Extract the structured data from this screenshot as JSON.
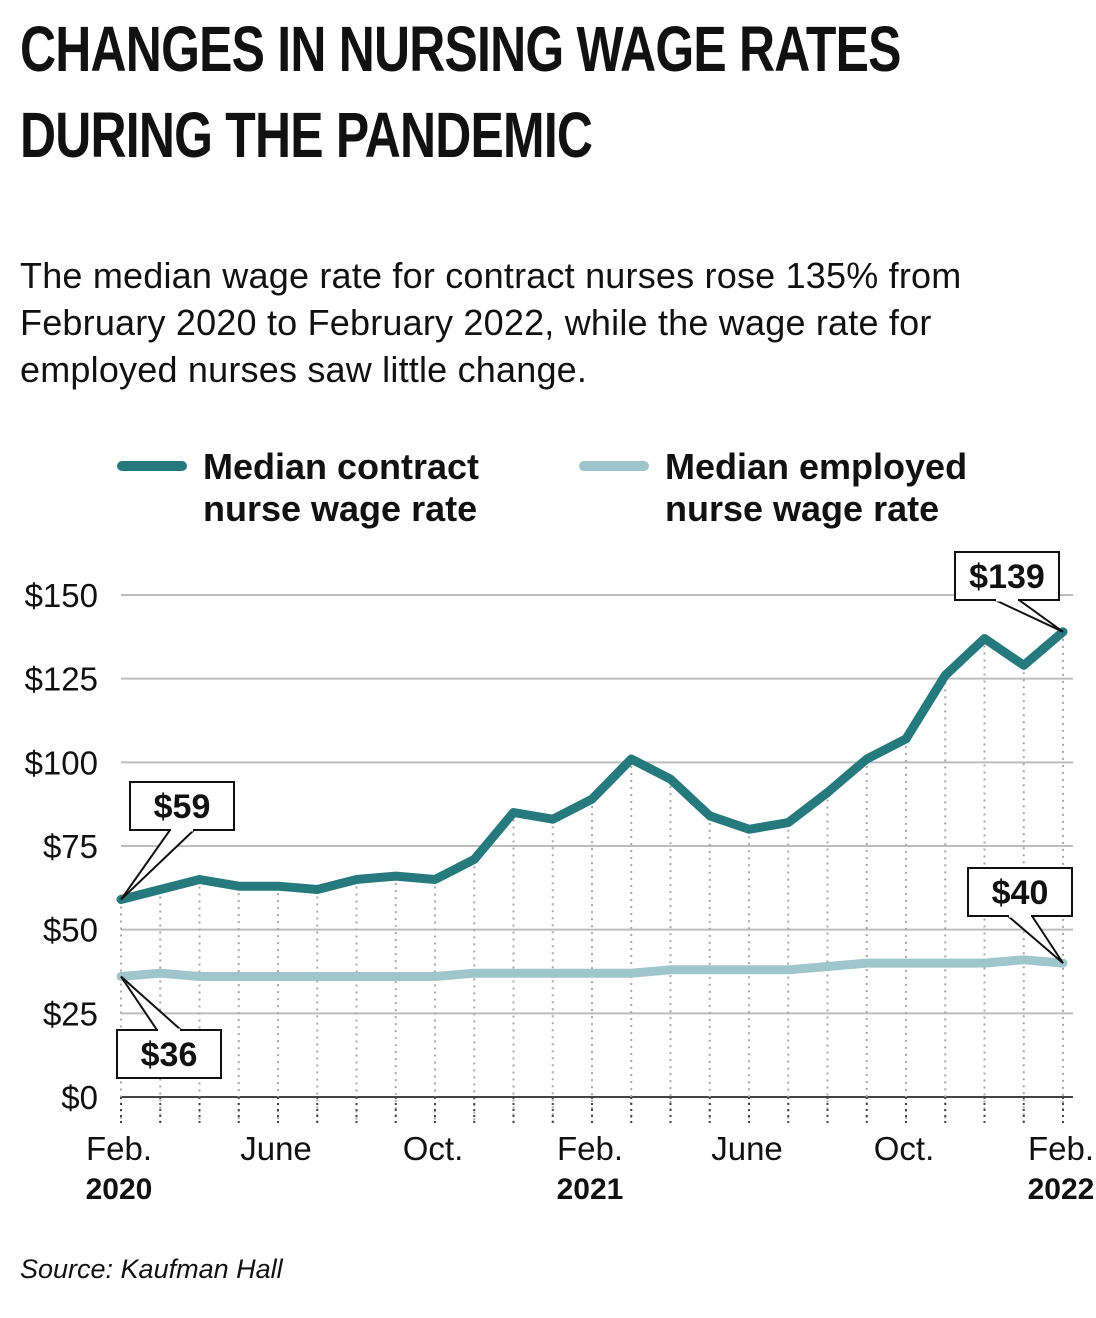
{
  "title_lines": [
    "CHANGES IN NURSING WAGE RATES",
    "DURING THE PANDEMIC"
  ],
  "subtitle": "The median wage rate for contract nurses rose 135% from February 2020 to February 2022, while the wage rate for employed nurses saw little change.",
  "source": "Source: Kaufman Hall",
  "colors": {
    "contract": "#267a7d",
    "employed": "#9fc6cc",
    "grid": "#bdbdbd",
    "text": "#111111"
  },
  "chart_data": {
    "type": "line",
    "x_count": 25,
    "ylim": [
      0,
      150
    ],
    "y_ticks": [
      0,
      25,
      50,
      75,
      100,
      125,
      150
    ],
    "y_tick_labels": [
      "$0",
      "$25",
      "$50",
      "$75",
      "$100",
      "$125",
      "$150"
    ],
    "x_tick_labels": [
      {
        "index": 0,
        "month": "Feb.",
        "year": "2020"
      },
      {
        "index": 4,
        "month": "June",
        "year": ""
      },
      {
        "index": 8,
        "month": "Oct.",
        "year": ""
      },
      {
        "index": 12,
        "month": "Feb.",
        "year": "2021"
      },
      {
        "index": 16,
        "month": "June",
        "year": ""
      },
      {
        "index": 20,
        "month": "Oct.",
        "year": ""
      },
      {
        "index": 24,
        "month": "Feb.",
        "year": "2022"
      }
    ],
    "series": [
      {
        "name": "Median contract nurse wage rate",
        "key": "contract",
        "values": [
          59,
          62,
          65,
          63,
          63,
          62,
          65,
          66,
          65,
          71,
          85,
          83,
          89,
          101,
          95,
          84,
          80,
          82,
          91,
          101,
          107,
          126,
          137,
          129,
          139
        ]
      },
      {
        "name": "Median employed nurse wage rate",
        "key": "employed",
        "values": [
          36,
          37,
          36,
          36,
          36,
          36,
          36,
          36,
          36,
          37,
          37,
          37,
          37,
          37,
          38,
          38,
          38,
          38,
          39,
          40,
          40,
          40,
          40,
          41,
          40
        ]
      }
    ],
    "annotations": [
      {
        "label": "$59",
        "series": "contract",
        "index": 0,
        "value": 59,
        "placement": "above"
      },
      {
        "label": "$139",
        "series": "contract",
        "index": 24,
        "value": 139,
        "placement": "above"
      },
      {
        "label": "$36",
        "series": "employed",
        "index": 0,
        "value": 36,
        "placement": "below"
      },
      {
        "label": "$40",
        "series": "employed",
        "index": 24,
        "value": 40,
        "placement": "above"
      }
    ]
  }
}
